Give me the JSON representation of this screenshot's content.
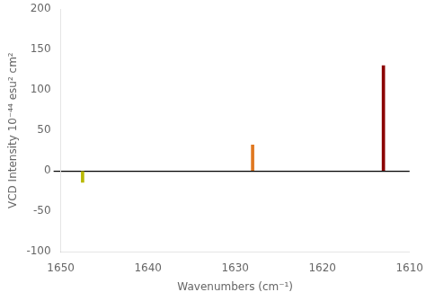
{
  "chart_data": {
    "type": "bar",
    "x": [
      1647.5,
      1628.0,
      1613.0
    ],
    "values": [
      -14,
      32,
      130
    ],
    "colors": [
      "#b8b800",
      "#e07820",
      "#8b0000"
    ],
    "xlabel": "Wavenumbers (cm⁻¹)",
    "ylabel": "VCD Intensity 10⁻⁴⁴ esu² cm²",
    "xlim": [
      1650,
      1610
    ],
    "ylim": [
      -100,
      200
    ],
    "xticks": [
      1650,
      1640,
      1630,
      1620,
      1610
    ],
    "yticks": [
      -100,
      -50,
      0,
      50,
      100,
      150,
      200
    ],
    "grid": false
  }
}
